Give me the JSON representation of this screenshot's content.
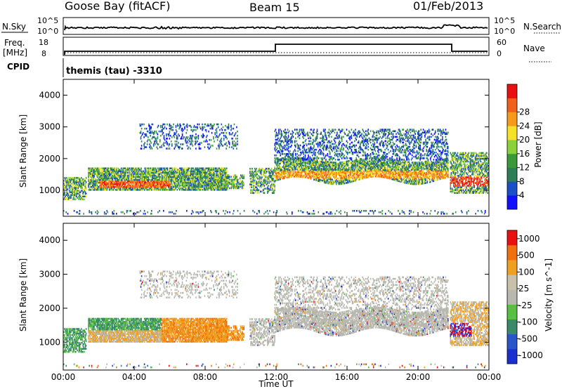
{
  "header": {
    "station": "Goose Bay (fitACF)",
    "beam": "Beam 15",
    "date": "01/Feb/2013"
  },
  "strip_panels": {
    "noise": {
      "left_label": "N.Sky",
      "right_label": "N.Search",
      "left_ticks": [
        "10^5",
        "10^0"
      ],
      "right_ticks": [
        "10^5",
        "10^0"
      ]
    },
    "freq": {
      "left_label_1": "Freq.",
      "left_label_2": "[MHz]",
      "right_label": "Nave",
      "left_ticks": [
        "18",
        "8"
      ],
      "right_ticks": [
        "60",
        "0"
      ]
    },
    "cpid": {
      "label": "CPID",
      "text": "themis (tau)  -3310"
    }
  },
  "x_axis": {
    "label": "Time UT",
    "ticks": [
      "00:00",
      "04:00",
      "08:00",
      "12:00",
      "16:00",
      "20:00",
      "00:00"
    ],
    "tick_hours": [
      0,
      4,
      8,
      12,
      16,
      20,
      24
    ]
  },
  "chart_data": [
    {
      "type": "heatmap",
      "panel": "power",
      "ylabel": "Slant Range [km]",
      "yticks": [
        1000,
        2000,
        3000,
        4000
      ],
      "ylim": [
        180,
        4500
      ],
      "colorbar": {
        "label": "Power [dB]",
        "ticks": [
          "4",
          "8",
          "12",
          "16",
          "20",
          "24",
          "28"
        ],
        "colors": [
          "#1010ff",
          "#1a4fc8",
          "#2e7d5a",
          "#3a9a3a",
          "#8ad13a",
          "#f5e02a",
          "#f59a1a",
          "#f06018",
          "#e81010"
        ]
      }
    },
    {
      "type": "heatmap",
      "panel": "velocity",
      "ylabel": "Slant Range [km]",
      "yticks": [
        1000,
        2000,
        3000,
        4000
      ],
      "ylim": [
        180,
        4500
      ],
      "colorbar": {
        "label": "Velocity [m s^-1]",
        "ticks": [
          "1000",
          "500",
          "100",
          "25",
          "-25",
          "-100",
          "-500",
          "-1000"
        ],
        "colors": [
          "#1a2fd0",
          "#2a55c8",
          "#3a8a6a",
          "#58c040",
          "#b8b8b0",
          "#c8c0a8",
          "#f0a020",
          "#f07010",
          "#e81010"
        ]
      }
    }
  ]
}
